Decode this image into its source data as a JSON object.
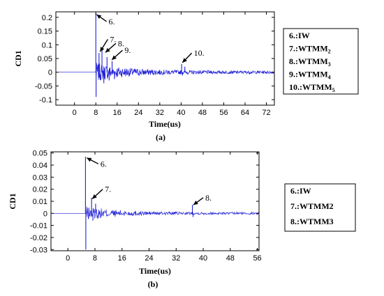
{
  "chart_data": [
    {
      "type": "line",
      "caption": "(a)",
      "ylabel": "CD1",
      "xlabel": "Time(us)",
      "xlim": [
        -7,
        75
      ],
      "ylim": [
        -0.12,
        0.22
      ],
      "xticks": [
        0,
        8,
        16,
        24,
        32,
        40,
        48,
        56,
        64,
        72
      ],
      "yticks": [
        -0.1,
        -0.05,
        0,
        0.05,
        0.1,
        0.15,
        0.2
      ],
      "ytick_labels": [
        "-0.1",
        "-0.05",
        "0",
        "0.05",
        "0.1",
        "0.15",
        "0.2"
      ],
      "grid": false,
      "legend_position": "right",
      "series_color": "#1f1fd6",
      "spikes": [
        {
          "x": 8.0,
          "y": 0.215
        },
        {
          "x": 8.1,
          "y": -0.09
        },
        {
          "x": 9.2,
          "y": 0.07
        },
        {
          "x": 10.3,
          "y": 0.085
        },
        {
          "x": 11.0,
          "y": -0.04
        },
        {
          "x": 12.2,
          "y": 0.055
        },
        {
          "x": 13.0,
          "y": -0.03
        },
        {
          "x": 14.1,
          "y": 0.04
        },
        {
          "x": 15.0,
          "y": -0.025
        },
        {
          "x": 40.2,
          "y": 0.03
        },
        {
          "x": 40.5,
          "y": -0.012
        },
        {
          "x": 41.4,
          "y": 0.02
        }
      ],
      "noise_decay": {
        "start": 8.0,
        "end": 75,
        "amplitude": 0.03,
        "tau": 12
      },
      "annotations": [
        {
          "label": "6.",
          "x": 12.0,
          "y": 0.185,
          "tx": 8.3,
          "ty": 0.21
        },
        {
          "label": "7.",
          "x": 12.5,
          "y": 0.12,
          "tx": 9.6,
          "ty": 0.075
        },
        {
          "label": "8.",
          "x": 15.5,
          "y": 0.105,
          "tx": 11.6,
          "ty": 0.072
        },
        {
          "label": "9.",
          "x": 18.0,
          "y": 0.08,
          "tx": 14.0,
          "ty": 0.045
        },
        {
          "label": "10.",
          "x": 44.0,
          "y": 0.07,
          "tx": 40.5,
          "ty": 0.035
        }
      ],
      "legend": [
        {
          "id": "6.",
          "main": "IW",
          "sub": ""
        },
        {
          "id": "7.",
          "main": "WTMM",
          "sub": "2"
        },
        {
          "id": "8.",
          "main": "WTMM",
          "sub": "3"
        },
        {
          "id": "9.",
          "main": "WTMM",
          "sub": "4"
        },
        {
          "id": "10.",
          "main": "WTMM",
          "sub": "5"
        }
      ]
    },
    {
      "type": "line",
      "caption": "(b)",
      "ylabel": "CD1",
      "xlabel": "Time(us)",
      "xlim": [
        -5,
        56.5
      ],
      "ylim": [
        -0.031,
        0.051
      ],
      "xticks": [
        0,
        8,
        16,
        24,
        32,
        40,
        48,
        56
      ],
      "yticks": [
        -0.03,
        -0.02,
        -0.01,
        0,
        0.01,
        0.02,
        0.03,
        0.04,
        0.05
      ],
      "ytick_labels": [
        "-0.03",
        "-0.02",
        "-0.01",
        "0",
        "0.01",
        "0.02",
        "0.03",
        "0.04",
        "0.05"
      ],
      "grid": false,
      "legend_position": "right",
      "series_color": "#1f1fd6",
      "spikes": [
        {
          "x": 5.2,
          "y": 0.047
        },
        {
          "x": 5.3,
          "y": -0.03
        },
        {
          "x": 7.0,
          "y": 0.013
        },
        {
          "x": 7.4,
          "y": -0.006
        },
        {
          "x": 8.2,
          "y": 0.008
        },
        {
          "x": 9.0,
          "y": -0.004
        },
        {
          "x": 36.8,
          "y": 0.007
        },
        {
          "x": 37.0,
          "y": -0.003
        }
      ],
      "noise_decay": {
        "start": 5.2,
        "end": 56.5,
        "amplitude": 0.005,
        "tau": 10
      },
      "annotations": [
        {
          "label": "6.",
          "x": 9.0,
          "y": 0.041,
          "tx": 5.6,
          "ty": 0.046
        },
        {
          "label": "7.",
          "x": 10.3,
          "y": 0.02,
          "tx": 7.2,
          "ty": 0.012
        },
        {
          "label": "8.",
          "x": 40.0,
          "y": 0.013,
          "tx": 37.1,
          "ty": 0.007
        }
      ],
      "legend": [
        {
          "id": "6.",
          "main": "IW",
          "sub": ""
        },
        {
          "id": "7.",
          "main": "WTMM2",
          "sub": ""
        },
        {
          "id": "8.",
          "main": "WTMM3",
          "sub": ""
        }
      ]
    }
  ]
}
